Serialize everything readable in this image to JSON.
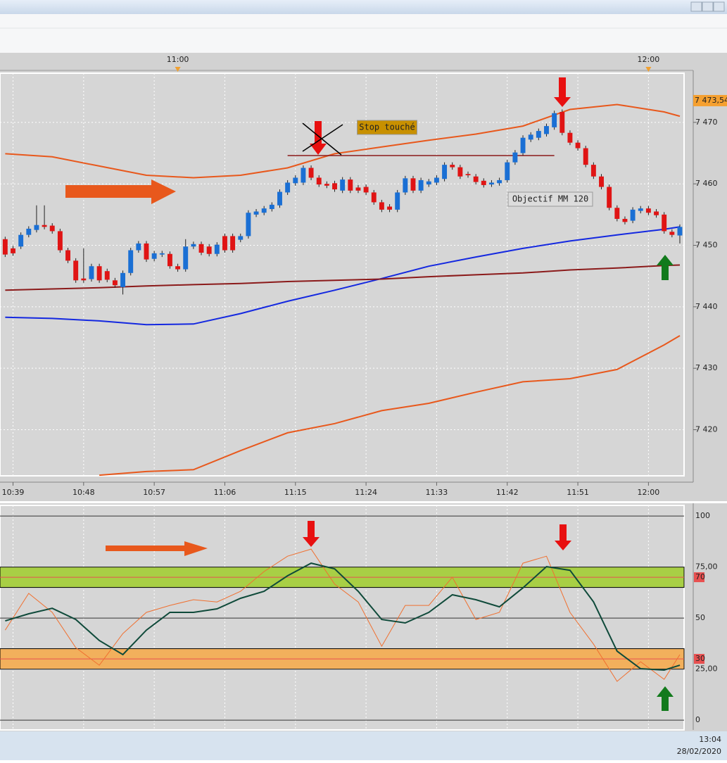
{
  "chart_data": [
    {
      "type": "candlestick",
      "x": [
        "10:38",
        "10:39",
        "10:40",
        "10:41",
        "10:42",
        "10:43",
        "10:44",
        "10:45",
        "10:46",
        "10:47",
        "10:48",
        "10:49",
        "10:50",
        "10:51",
        "10:52",
        "10:53",
        "10:54",
        "10:55",
        "10:56",
        "10:57",
        "10:58",
        "10:59",
        "11:00",
        "11:01",
        "11:02",
        "11:03",
        "11:04",
        "11:05",
        "11:06",
        "11:07",
        "11:08",
        "11:09",
        "11:10",
        "11:11",
        "11:12",
        "11:13",
        "11:14",
        "11:15",
        "11:16",
        "11:17",
        "11:18",
        "11:19",
        "11:20",
        "11:21",
        "11:22",
        "11:23",
        "11:24",
        "11:25",
        "11:26",
        "11:27",
        "11:28",
        "11:29",
        "11:30",
        "11:31",
        "11:32",
        "11:33",
        "11:34",
        "11:35",
        "11:36",
        "11:37",
        "11:38",
        "11:39",
        "11:40",
        "11:41",
        "11:42",
        "11:43",
        "11:44",
        "11:45",
        "11:46",
        "11:47",
        "11:48",
        "11:49",
        "11:50",
        "11:51",
        "11:52",
        "11:53",
        "11:54",
        "11:55",
        "11:56",
        "11:57",
        "11:58",
        "11:59",
        "12:00",
        "12:01",
        "12:02",
        "12:03",
        "12:04"
      ],
      "open": [
        7451.0,
        7449.5,
        7449.8,
        7451.7,
        7452.5,
        7453.3,
        7453.2,
        7452.3,
        7449.2,
        7447.5,
        7444.6,
        7444.5,
        7446.6,
        7445.8,
        7444.3,
        7443.2,
        7445.5,
        7449.2,
        7450.3,
        7447.8,
        7448.5,
        7448.6,
        7446.6,
        7446.1,
        7449.8,
        7450.2,
        7449.8,
        7448.6,
        7451.5,
        7451.5,
        7450.9,
        7451.5,
        7455.0,
        7455.3,
        7455.9,
        7456.5,
        7458.6,
        7460.1,
        7460.2,
        7462.6,
        7461.0,
        7460.0,
        7460.1,
        7458.9,
        7460.7,
        7459.4,
        7459.5,
        7458.6,
        7457.0,
        7456.3,
        7455.8,
        7458.6,
        7460.9,
        7458.9,
        7459.9,
        7460.2,
        7460.8,
        7463.1,
        7462.7,
        7461.6,
        7461.2,
        7460.5,
        7459.9,
        7460.1,
        7460.6,
        7463.5,
        7465.0,
        7467.2,
        7467.5,
        7468.1,
        7469.2,
        7471.7,
        7468.3,
        7466.7,
        7465.8,
        7463.1,
        7461.2,
        7459.5,
        7456.1,
        7454.3,
        7454.0,
        7455.6,
        7456.0,
        7455.5,
        7455.0,
        7452.2,
        7451.6
      ],
      "high": [
        7451.4,
        7449.9,
        7452.1,
        7453.1,
        7456.5,
        7456.5,
        7453.6,
        7452.7,
        7449.6,
        7447.9,
        7449.5,
        7447.0,
        7447.0,
        7446.2,
        7444.7,
        7445.9,
        7449.6,
        7450.7,
        7450.7,
        7449.1,
        7449.1,
        7449.0,
        7447.0,
        7451.0,
        7450.6,
        7450.6,
        7450.2,
        7450.5,
        7451.9,
        7451.9,
        7451.9,
        7455.7,
        7455.9,
        7456.4,
        7457.0,
        7459.1,
        7460.6,
        7461.4,
        7463.0,
        7463.0,
        7461.4,
        7460.4,
        7460.5,
        7461.1,
        7461.1,
        7459.8,
        7459.9,
        7459.0,
        7457.4,
        7456.7,
        7459.0,
        7461.3,
        7461.3,
        7461.0,
        7460.8,
        7461.4,
        7463.5,
        7463.5,
        7463.1,
        7462.0,
        7461.6,
        7460.9,
        7460.6,
        7461.0,
        7463.9,
        7465.5,
        7467.9,
        7468.4,
        7469.0,
        7469.8,
        7471.9,
        7472.1,
        7468.7,
        7467.1,
        7466.2,
        7463.5,
        7461.6,
        7459.9,
        7456.5,
        7454.7,
        7456.2,
        7456.4,
        7456.4,
        7455.9,
        7455.4,
        7452.6,
        7453.4
      ],
      "low": [
        7448.1,
        7448.3,
        7449.4,
        7451.3,
        7452.1,
        7452.6,
        7451.9,
        7448.8,
        7447.1,
        7443.9,
        7443.9,
        7444.1,
        7443.9,
        7444.0,
        7443.1,
        7442.0,
        7445.1,
        7448.8,
        7447.3,
        7447.4,
        7448.1,
        7446.2,
        7445.7,
        7445.7,
        7449.4,
        7448.4,
        7448.2,
        7448.2,
        7448.8,
        7448.8,
        7450.5,
        7451.1,
        7454.6,
        7454.9,
        7455.5,
        7456.1,
        7458.2,
        7459.7,
        7459.8,
        7460.6,
        7459.5,
        7459.3,
        7458.7,
        7458.5,
        7458.5,
        7458.5,
        7458.2,
        7456.6,
        7455.4,
        7455.4,
        7455.4,
        7458.2,
        7458.5,
        7458.5,
        7459.5,
        7459.8,
        7460.4,
        7462.3,
        7460.8,
        7461.0,
        7459.9,
        7459.4,
        7459.5,
        7459.7,
        7460.2,
        7463.1,
        7464.6,
        7466.8,
        7467.1,
        7467.7,
        7468.8,
        7467.9,
        7466.3,
        7465.4,
        7462.7,
        7460.8,
        7459.1,
        7455.7,
        7453.9,
        7453.4,
        7453.6,
        7455.2,
        7454.9,
        7454.5,
        7451.9,
        7451.3,
        7450.3
      ],
      "close": [
        7448.5,
        7448.7,
        7451.7,
        7452.7,
        7453.3,
        7453.0,
        7452.3,
        7449.2,
        7447.5,
        7444.3,
        7444.3,
        7446.6,
        7444.3,
        7444.4,
        7443.5,
        7445.5,
        7449.2,
        7450.3,
        7447.7,
        7448.7,
        7448.7,
        7446.6,
        7446.1,
        7449.8,
        7450.2,
        7448.8,
        7448.6,
        7450.1,
        7449.2,
        7449.2,
        7451.5,
        7455.3,
        7455.5,
        7456.0,
        7456.6,
        7458.7,
        7460.2,
        7461.0,
        7462.6,
        7461.0,
        7459.9,
        7459.7,
        7459.1,
        7460.7,
        7458.9,
        7458.9,
        7458.6,
        7457.0,
        7455.8,
        7455.8,
        7458.6,
        7460.9,
        7458.9,
        7460.6,
        7460.4,
        7461.0,
        7463.1,
        7462.7,
        7461.2,
        7461.4,
        7460.3,
        7459.8,
        7460.2,
        7460.6,
        7463.5,
        7465.1,
        7467.5,
        7468.0,
        7468.6,
        7469.4,
        7471.5,
        7468.3,
        7466.7,
        7465.8,
        7463.1,
        7461.2,
        7459.5,
        7456.1,
        7454.3,
        7453.8,
        7455.8,
        7456.0,
        7455.3,
        7454.9,
        7452.3,
        7451.7,
        7453.0
      ],
      "up_color": "#1a6fd4",
      "down_color": "#e01414",
      "series": [
        {
          "color": "#e8581c",
          "x": [
            "10:38",
            "10:44",
            "10:50",
            "10:56",
            "11:02",
            "11:08",
            "11:14",
            "11:20",
            "11:26",
            "11:32",
            "11:38",
            "11:44",
            "11:50",
            "11:56",
            "12:02",
            "12:04"
          ],
          "values": [
            7464.9,
            7464.4,
            7462.9,
            7461.4,
            7461.0,
            7461.4,
            7462.6,
            7464.9,
            7466.0,
            7467.1,
            7468.1,
            7469.4,
            7472.1,
            7472.9,
            7471.7,
            7471.0
          ]
        },
        {
          "color": "#e8581c",
          "x": [
            "10:38",
            "10:44",
            "10:50",
            "10:56",
            "11:02",
            "11:08",
            "11:14",
            "11:20",
            "11:26",
            "11:32",
            "11:38",
            "11:44",
            "11:50",
            "11:56",
            "12:02",
            "12:04"
          ],
          "values": [
            null,
            null,
            7412.6,
            7413.2,
            7413.5,
            7416.6,
            7419.5,
            7421.0,
            7423.1,
            7424.3,
            7426.1,
            7427.8,
            7428.3,
            7429.8,
            7433.8,
            7435.3
          ]
        },
        {
          "color": "#1428e0",
          "x": [
            "10:38",
            "10:44",
            "10:50",
            "10:56",
            "11:02",
            "11:08",
            "11:14",
            "11:20",
            "11:26",
            "11:32",
            "11:38",
            "11:44",
            "11:50",
            "11:56",
            "12:02",
            "12:04"
          ],
          "values": [
            7438.3,
            7438.1,
            7437.7,
            7437.1,
            7437.2,
            7438.9,
            7440.9,
            7442.7,
            7444.6,
            7446.6,
            7448.1,
            7449.5,
            7450.7,
            7451.7,
            7452.6,
            7453.0
          ]
        },
        {
          "color": "#8b1a1a",
          "x": [
            "10:38",
            "10:44",
            "10:50",
            "10:56",
            "11:02",
            "11:08",
            "11:14",
            "11:20",
            "11:26",
            "11:32",
            "11:38",
            "11:44",
            "11:50",
            "11:56",
            "12:02",
            "12:04"
          ],
          "values": [
            7442.7,
            7442.9,
            7443.1,
            7443.4,
            7443.6,
            7443.8,
            7444.1,
            7444.3,
            7444.5,
            7444.9,
            7445.2,
            7445.5,
            7446.0,
            7446.3,
            7446.7,
            7446.8
          ]
        }
      ],
      "hlines": [
        {
          "value": 7464.6,
          "from": "11:14",
          "to": "11:48",
          "color": "#8b1a1a"
        }
      ],
      "annotations": [
        {
          "text": "Stop touché"
        },
        {
          "text": "Objectif MM 120"
        }
      ],
      "price_label": {
        "value": 7473.54,
        "label": "7 473,54"
      },
      "xlim": [
        "10:38",
        "12:04"
      ],
      "xticks": [
        "10:39",
        "10:48",
        "10:57",
        "11:06",
        "11:15",
        "11:24",
        "11:33",
        "11:42",
        "11:51",
        "12:00"
      ],
      "x2ticks": [
        "11:00",
        "12:00"
      ],
      "ylim": [
        7412.5,
        7478
      ],
      "yticks": [
        {
          "value": 7420,
          "label": "7 420"
        },
        {
          "value": 7430,
          "label": "7 430"
        },
        {
          "value": 7440,
          "label": "7 440"
        },
        {
          "value": 7450,
          "label": "7 450"
        },
        {
          "value": 7460,
          "label": "7 460"
        },
        {
          "value": 7470,
          "label": "7 470"
        }
      ],
      "grid": true
    },
    {
      "type": "line",
      "x": [
        "10:38",
        "10:41",
        "10:44",
        "10:47",
        "10:50",
        "10:53",
        "10:56",
        "10:59",
        "11:02",
        "11:05",
        "11:08",
        "11:11",
        "11:14",
        "11:17",
        "11:20",
        "11:23",
        "11:26",
        "11:29",
        "11:32",
        "11:35",
        "11:38",
        "11:41",
        "11:44",
        "11:47",
        "11:50",
        "11:53",
        "11:56",
        "11:59",
        "12:02",
        "12:04"
      ],
      "series": [
        {
          "color": "#f07030",
          "values": [
            44.1,
            62.1,
            52.8,
            35.5,
            26.9,
            42.4,
            52.8,
            56.2,
            59.0,
            57.9,
            63.1,
            72.8,
            80.3,
            83.8,
            66.6,
            57.9,
            36.2,
            56.2,
            56.2,
            70.0,
            49.3,
            52.8,
            76.9,
            80.3,
            52.8,
            37.2,
            19.0,
            28.6,
            20.0,
            32.1
          ]
        },
        {
          "color": "#0f4a3a",
          "values": [
            48.6,
            52.1,
            54.8,
            49.3,
            39.0,
            32.1,
            44.1,
            52.8,
            52.8,
            54.5,
            59.7,
            63.1,
            70.7,
            76.9,
            74.1,
            63.1,
            49.3,
            47.6,
            52.8,
            61.4,
            59.0,
            55.5,
            64.8,
            75.2,
            73.4,
            57.9,
            33.8,
            25.2,
            24.5,
            26.9
          ]
        }
      ],
      "bands": [
        {
          "from": 65,
          "to": 75,
          "color": "#a8cf45"
        },
        {
          "from": 25,
          "to": 35,
          "color": "#f2b05c"
        }
      ],
      "levels": [
        {
          "value": 70,
          "color": "#e85050"
        },
        {
          "value": 30,
          "color": "#e85050"
        }
      ],
      "ylim": [
        -4.8,
        105.2
      ],
      "yticks": [
        0,
        {
          "value": 25,
          "label": "25,00"
        },
        30,
        50,
        70,
        {
          "value": 75,
          "label": "75,00"
        },
        100
      ],
      "grid": true
    }
  ],
  "taskbar": {
    "time": "13:04",
    "date": "28/02/2020"
  }
}
